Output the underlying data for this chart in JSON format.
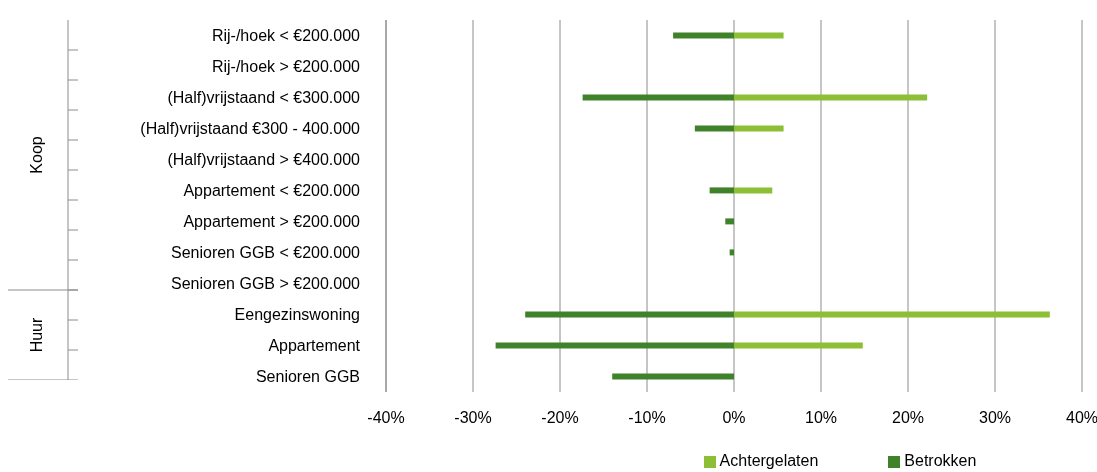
{
  "chart_data": {
    "type": "bar",
    "orientation": "horizontal",
    "stacked": true,
    "categories": [
      "Rij-/hoek < €200.000",
      "Rij-/hoek > €200.000",
      "(Half)vrijstaand < €300.000",
      "(Half)vrijstaand €300 - 400.000",
      "(Half)vrijstaand > €400.000",
      "Appartement < €200.000",
      "Appartement > €200.000",
      "Senioren GGB < €200.000",
      "Senioren GGB > €200.000",
      "Eengezinswoning",
      "Appartement",
      "Senioren GGB"
    ],
    "series": [
      {
        "name": "Betrokken",
        "color": "#40822a",
        "values": [
          -7.0,
          null,
          -17.4,
          -4.5,
          null,
          -2.8,
          -1.0,
          -0.5,
          null,
          -24.0,
          -27.4,
          -14.0
        ]
      },
      {
        "name": "Achtergelaten",
        "color": "#8cbf35",
        "values": [
          5.7,
          null,
          22.2,
          5.7,
          null,
          4.4,
          null,
          null,
          null,
          36.3,
          14.8,
          null
        ]
      }
    ],
    "xlim": [
      -40,
      40
    ],
    "xticks": [
      {
        "value": -40,
        "label": "-40%"
      },
      {
        "value": -30,
        "label": "-30%"
      },
      {
        "value": -20,
        "label": "-20%"
      },
      {
        "value": -10,
        "label": "-10%"
      },
      {
        "value": 0,
        "label": "0%"
      },
      {
        "value": 10,
        "label": "10%"
      },
      {
        "value": 20,
        "label": "20%"
      },
      {
        "value": 30,
        "label": "30%"
      },
      {
        "value": 40,
        "label": "40%"
      }
    ],
    "grid": "x",
    "legend": "bottom",
    "annotations": [
      "Koop",
      "Huur"
    ]
  }
}
